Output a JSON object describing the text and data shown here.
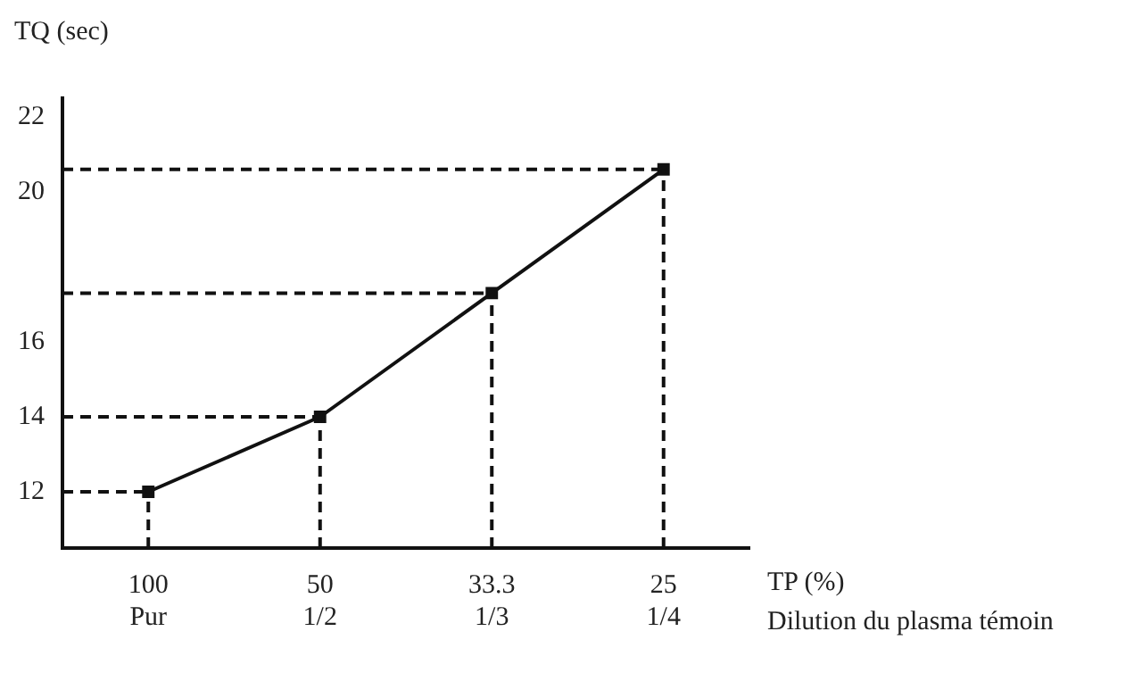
{
  "chart_data": {
    "type": "line",
    "ylabel": "TQ (sec)",
    "xlabel": "TP (%)\nDilution du plasma témoin",
    "categories": [
      "100\nPur",
      "50\n1/2",
      "33.3\n1/3",
      "25\n1/4"
    ],
    "series": [
      {
        "color": "#111111",
        "values": [
          12,
          14,
          17.3,
          20.6
        ]
      }
    ],
    "ref_lines": [
      {
        "axis": "y",
        "value": 12,
        "color": "#111111",
        "line_style": "dashed"
      },
      {
        "axis": "y",
        "value": 14,
        "color": "#111111",
        "line_style": "dashed"
      },
      {
        "axis": "y",
        "value": 17.3,
        "color": "#111111",
        "line_style": "dashed"
      },
      {
        "axis": "y",
        "value": 20.6,
        "color": "#111111",
        "line_style": "dashed"
      },
      {
        "axis": "x",
        "value": "100\nPur",
        "color": "#111111",
        "line_style": "dashed"
      },
      {
        "axis": "x",
        "value": "50\n1/2",
        "color": "#111111",
        "line_style": "dashed"
      },
      {
        "axis": "x",
        "value": "33.3\n1/3",
        "color": "#111111",
        "line_style": "dashed"
      },
      {
        "axis": "x",
        "value": "25\n1/4",
        "color": "#111111",
        "line_style": "dashed"
      }
    ],
    "ylim": [
      10.5,
      22.5
    ],
    "yticks": [
      12,
      14,
      16,
      20,
      22
    ],
    "grid": false,
    "legend": false,
    "marker": "square",
    "line_style": "solid"
  }
}
